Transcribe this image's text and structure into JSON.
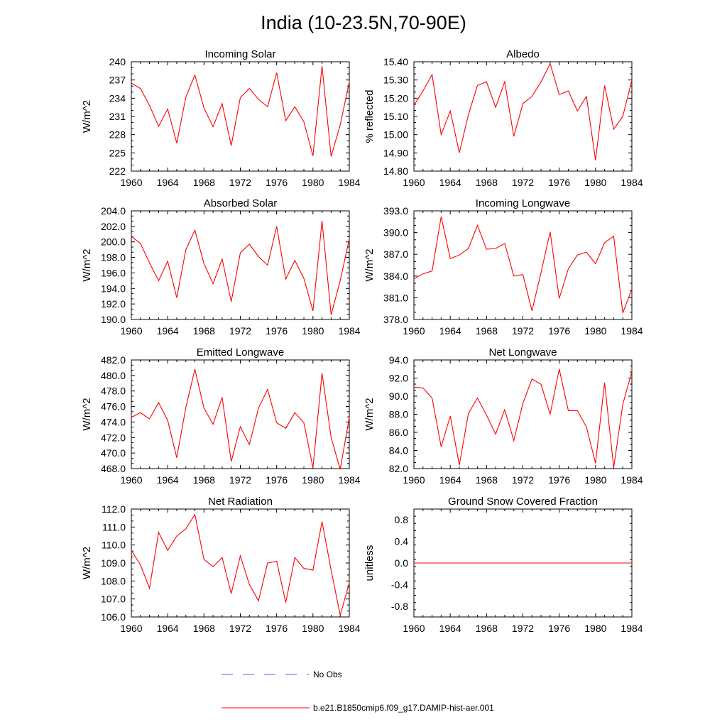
{
  "figure": {
    "title": "India (10-23.5N,70-90E)",
    "legend": [
      {
        "label": "No Obs",
        "color": "#5a5ad6",
        "style": "dashed"
      },
      {
        "label": "b.e21.B1850cmip6.f09_g17.DAMIP-hist-aer.001",
        "color": "#ff0000",
        "style": "solid"
      }
    ]
  },
  "chart_data": [
    {
      "type": "line",
      "title": "Incoming Solar",
      "ylabel": "W/m^2",
      "xlim": [
        1960,
        1984
      ],
      "ylim": [
        222,
        240
      ],
      "xticks": [
        "1960",
        "1964",
        "1968",
        "1972",
        "1976",
        "1980",
        "1984"
      ],
      "yticks": [
        "222",
        "225",
        "228",
        "231",
        "234",
        "237",
        "240"
      ],
      "series": [
        {
          "color": "#ff0000",
          "x": [
            1960,
            1961,
            1962,
            1963,
            1964,
            1965,
            1966,
            1967,
            1968,
            1969,
            1970,
            1971,
            1972,
            1973,
            1974,
            1975,
            1976,
            1977,
            1978,
            1979,
            1980,
            1981,
            1982,
            1983,
            1984
          ],
          "values": [
            236.5,
            235.6,
            232.8,
            229.4,
            232.2,
            226.6,
            234.2,
            237.8,
            232.4,
            229.3,
            233.1,
            226.2,
            234.1,
            235.6,
            233.8,
            232.6,
            238.2,
            230.3,
            232.6,
            230.1,
            224.5,
            239.3,
            224.4,
            229.6,
            236.7
          ]
        }
      ]
    },
    {
      "type": "line",
      "title": "Albedo",
      "ylabel": "% reflected",
      "xlim": [
        1960,
        1984
      ],
      "ylim": [
        14.8,
        15.4
      ],
      "xticks": [
        "1960",
        "1964",
        "1968",
        "1972",
        "1976",
        "1980",
        "1984"
      ],
      "yticks": [
        "14.80",
        "14.90",
        "15.00",
        "15.10",
        "15.20",
        "15.30",
        "15.40"
      ],
      "series": [
        {
          "color": "#ff0000",
          "x": [
            1960,
            1961,
            1962,
            1963,
            1964,
            1965,
            1966,
            1967,
            1968,
            1969,
            1970,
            1971,
            1972,
            1973,
            1974,
            1975,
            1976,
            1977,
            1978,
            1979,
            1980,
            1981,
            1982,
            1983,
            1984
          ],
          "values": [
            15.16,
            15.24,
            15.33,
            15.0,
            15.13,
            14.9,
            15.11,
            15.27,
            15.29,
            15.15,
            15.29,
            14.99,
            15.17,
            15.21,
            15.29,
            15.39,
            15.22,
            15.24,
            15.13,
            15.21,
            14.86,
            15.27,
            15.03,
            15.1,
            15.3
          ]
        }
      ]
    },
    {
      "type": "line",
      "title": "Absorbed Solar",
      "ylabel": "W/m^2",
      "xlim": [
        1960,
        1984
      ],
      "ylim": [
        190,
        204
      ],
      "xticks": [
        "1960",
        "1964",
        "1968",
        "1972",
        "1976",
        "1980",
        "1984"
      ],
      "yticks": [
        "190.0",
        "192.0",
        "194.0",
        "196.0",
        "198.0",
        "200.0",
        "202.0",
        "204.0"
      ],
      "series": [
        {
          "color": "#ff0000",
          "x": [
            1960,
            1961,
            1962,
            1963,
            1964,
            1965,
            1966,
            1967,
            1968,
            1969,
            1970,
            1971,
            1972,
            1973,
            1974,
            1975,
            1976,
            1977,
            1978,
            1979,
            1980,
            1981,
            1982,
            1983,
            1984
          ],
          "values": [
            200.7,
            199.8,
            197.3,
            195.0,
            197.5,
            192.8,
            199.0,
            201.5,
            197.2,
            194.6,
            197.8,
            192.3,
            198.6,
            199.7,
            198.1,
            197.0,
            202.0,
            195.2,
            197.6,
            195.3,
            191.1,
            202.7,
            190.6,
            195.0,
            200.4
          ]
        }
      ]
    },
    {
      "type": "line",
      "title": "Incoming Longwave",
      "ylabel": "W/m^2",
      "xlim": [
        1960,
        1984
      ],
      "ylim": [
        378,
        393
      ],
      "xticks": [
        "1960",
        "1964",
        "1968",
        "1972",
        "1976",
        "1980",
        "1984"
      ],
      "yticks": [
        "378.0",
        "381.0",
        "384.0",
        "387.0",
        "390.0",
        "393.0"
      ],
      "series": [
        {
          "color": "#ff0000",
          "x": [
            1960,
            1961,
            1962,
            1963,
            1964,
            1965,
            1966,
            1967,
            1968,
            1969,
            1970,
            1971,
            1972,
            1973,
            1974,
            1975,
            1976,
            1977,
            1978,
            1979,
            1980,
            1981,
            1982,
            1983,
            1984
          ],
          "values": [
            383.6,
            384.3,
            384.7,
            392.2,
            386.4,
            386.9,
            387.8,
            391.0,
            387.7,
            387.8,
            388.5,
            384.0,
            384.2,
            379.2,
            384.5,
            390.1,
            380.9,
            385.0,
            386.9,
            387.3,
            385.7,
            388.6,
            389.5,
            378.9,
            382.2
          ]
        }
      ]
    },
    {
      "type": "line",
      "title": "Emitted Longwave",
      "ylabel": "W/m^2",
      "xlim": [
        1960,
        1984
      ],
      "ylim": [
        468,
        482
      ],
      "xticks": [
        "1960",
        "1964",
        "1968",
        "1972",
        "1976",
        "1980",
        "1984"
      ],
      "yticks": [
        "468.0",
        "470.0",
        "472.0",
        "474.0",
        "476.0",
        "478.0",
        "480.0",
        "482.0"
      ],
      "series": [
        {
          "color": "#ff0000",
          "x": [
            1960,
            1961,
            1962,
            1963,
            1964,
            1965,
            1966,
            1967,
            1968,
            1969,
            1970,
            1971,
            1972,
            1973,
            1974,
            1975,
            1976,
            1977,
            1978,
            1979,
            1980,
            1981,
            1982,
            1983,
            1984
          ],
          "values": [
            474.6,
            475.2,
            474.4,
            476.5,
            474.2,
            469.4,
            475.9,
            480.8,
            475.8,
            473.7,
            477.2,
            468.9,
            473.4,
            471.1,
            475.8,
            478.2,
            473.9,
            473.2,
            475.2,
            473.9,
            468.1,
            480.3,
            472.0,
            467.9,
            474.6
          ]
        }
      ]
    },
    {
      "type": "line",
      "title": "Net Longwave",
      "ylabel": "W/m^2",
      "xlim": [
        1960,
        1984
      ],
      "ylim": [
        82,
        94
      ],
      "xticks": [
        "1960",
        "1964",
        "1968",
        "1972",
        "1976",
        "1980",
        "1984"
      ],
      "yticks": [
        "82.0",
        "84.0",
        "86.0",
        "88.0",
        "90.0",
        "92.0",
        "94.0"
      ],
      "series": [
        {
          "color": "#ff0000",
          "x": [
            1960,
            1961,
            1962,
            1963,
            1964,
            1965,
            1966,
            1967,
            1968,
            1969,
            1970,
            1971,
            1972,
            1973,
            1974,
            1975,
            1976,
            1977,
            1978,
            1979,
            1980,
            1981,
            1982,
            1983,
            1984
          ],
          "values": [
            91.0,
            90.9,
            89.8,
            84.4,
            87.8,
            82.4,
            88.1,
            89.8,
            87.9,
            85.8,
            88.5,
            85.1,
            89.2,
            91.9,
            91.3,
            88.0,
            93.0,
            88.4,
            88.4,
            86.6,
            82.6,
            91.5,
            82.1,
            89.1,
            92.7
          ]
        }
      ]
    },
    {
      "type": "line",
      "title": "Net Radiation",
      "ylabel": "W/m^2",
      "xlim": [
        1960,
        1984
      ],
      "ylim": [
        106,
        112
      ],
      "xticks": [
        "1960",
        "1964",
        "1968",
        "1972",
        "1976",
        "1980",
        "1984"
      ],
      "yticks": [
        "106.0",
        "107.0",
        "108.0",
        "109.0",
        "110.0",
        "111.0",
        "112.0"
      ],
      "series": [
        {
          "color": "#ff0000",
          "x": [
            1960,
            1961,
            1962,
            1963,
            1964,
            1965,
            1966,
            1967,
            1968,
            1969,
            1970,
            1971,
            1972,
            1973,
            1974,
            1975,
            1976,
            1977,
            1978,
            1979,
            1980,
            1981,
            1982,
            1983,
            1984
          ],
          "values": [
            109.7,
            108.9,
            107.6,
            110.7,
            109.7,
            110.5,
            110.9,
            111.7,
            109.2,
            108.8,
            109.3,
            107.3,
            109.4,
            107.8,
            106.9,
            109.0,
            109.1,
            106.8,
            109.3,
            108.7,
            108.6,
            111.3,
            108.6,
            106.1,
            107.9
          ]
        }
      ]
    },
    {
      "type": "line",
      "title": "Ground Snow Covered Fraction",
      "ylabel": "unitless",
      "xlim": [
        1960,
        1984
      ],
      "ylim": [
        -1,
        1
      ],
      "xticks": [
        "1960",
        "1964",
        "1968",
        "1972",
        "1976",
        "1980",
        "1984"
      ],
      "yticks": [
        "-0.8",
        "-0.4",
        "0.0",
        "0.4",
        "0.8"
      ],
      "yticks_at": [
        -0.8,
        -0.4,
        0.0,
        0.4,
        0.8
      ],
      "series": [
        {
          "color": "#ff0000",
          "x": [
            1960,
            1984
          ],
          "values": [
            0,
            0
          ]
        }
      ]
    }
  ]
}
